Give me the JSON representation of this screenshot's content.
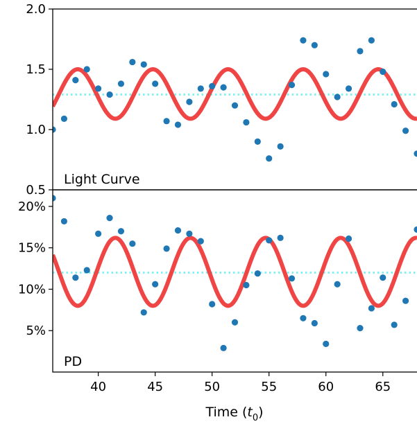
{
  "chart_data": [
    {
      "type": "scatter",
      "panel_label": "Light Curve",
      "xlim": [
        36,
        68
      ],
      "ylim": [
        0.5,
        2.0
      ],
      "y_ticks": [
        0.5,
        1.0,
        1.5,
        2.0
      ],
      "y_tick_labels": [
        "0.5",
        "1.0",
        "1.5",
        "2.0"
      ],
      "points": {
        "color": "#1f77b4",
        "x": [
          36,
          37,
          38,
          39,
          40,
          41,
          42,
          43,
          44,
          45,
          46,
          47,
          48,
          49,
          50,
          51,
          52,
          53,
          54,
          55,
          56,
          57,
          58,
          59,
          60,
          61,
          62,
          63,
          64,
          65,
          66,
          67,
          68
        ],
        "y": [
          1.0,
          1.09,
          1.41,
          1.5,
          1.34,
          1.29,
          1.38,
          1.56,
          1.54,
          1.38,
          1.07,
          1.04,
          1.23,
          1.34,
          1.36,
          1.35,
          1.2,
          1.06,
          0.9,
          0.76,
          0.86,
          1.37,
          1.74,
          1.7,
          1.46,
          1.27,
          1.34,
          1.65,
          1.74,
          1.48,
          1.21,
          0.99,
          0.8
        ]
      },
      "model": {
        "color": "#ef3b3b",
        "mean": 1.295,
        "amplitude": 0.205,
        "period": 6.6,
        "peak_at": 38.2
      },
      "mean_line": {
        "y": 1.29,
        "color": "#7ff2f2"
      }
    },
    {
      "type": "scatter",
      "panel_label": "PD",
      "xlim": [
        36,
        68
      ],
      "ylim": [
        0,
        22
      ],
      "y_ticks": [
        5,
        10,
        15,
        20
      ],
      "y_tick_labels": [
        "5%",
        "10%",
        "15%",
        "20%"
      ],
      "points": {
        "color": "#1f77b4",
        "x": [
          36,
          37,
          38,
          39,
          40,
          41,
          42,
          43,
          44,
          45,
          46,
          47,
          48,
          49,
          50,
          51,
          52,
          53,
          54,
          55,
          56,
          57,
          58,
          59,
          60,
          61,
          62,
          63,
          64,
          65,
          66,
          67,
          68
        ],
        "y": [
          21.0,
          18.2,
          11.4,
          12.3,
          16.7,
          18.6,
          17.0,
          15.5,
          7.2,
          10.6,
          14.9,
          17.1,
          16.7,
          15.8,
          8.2,
          2.9,
          6.0,
          10.5,
          11.9,
          15.9,
          16.2,
          11.3,
          6.5,
          5.9,
          3.4,
          10.6,
          16.1,
          5.3,
          7.7,
          11.4,
          5.7,
          8.6,
          17.2
        ]
      },
      "model": {
        "color": "#ef3b3b",
        "mean": 12.1,
        "amplitude": 4.1,
        "period": 6.6,
        "peak_at": 41.5
      },
      "mean_line": {
        "y": 12.0,
        "color": "#7ff2f2"
      }
    }
  ],
  "x_axis": {
    "ticks": [
      40,
      45,
      50,
      55,
      60,
      65
    ],
    "tick_labels": [
      "40",
      "45",
      "50",
      "55",
      "60",
      "65"
    ],
    "label_main": "Time (",
    "label_var": "t",
    "label_sub": "0",
    "label_close": ")"
  }
}
